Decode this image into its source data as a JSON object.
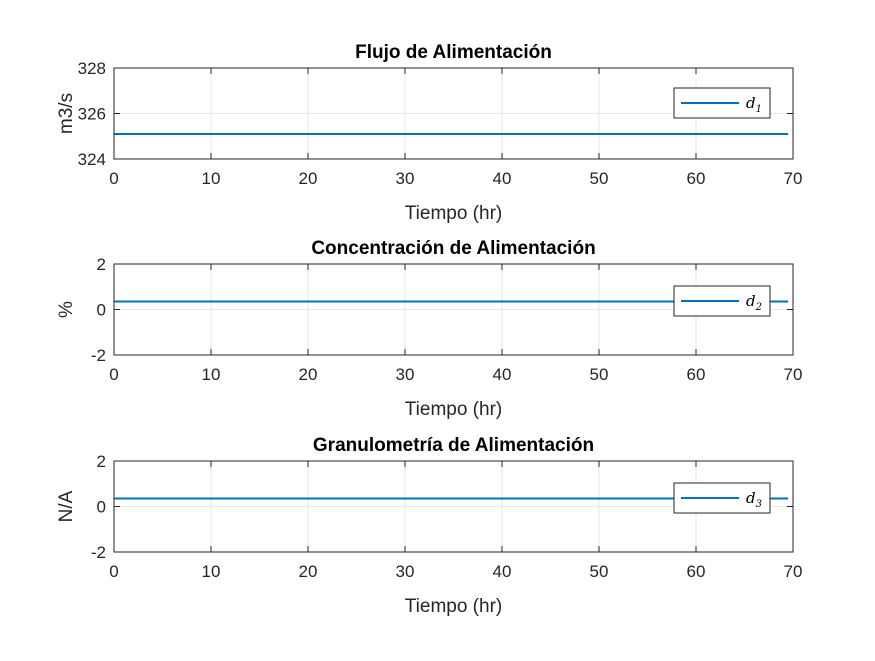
{
  "figure": {
    "background": "#ffffff",
    "line_color": "#0072BD",
    "grid_color": "#e6e6e6"
  },
  "chart_data": [
    {
      "type": "line",
      "title": "Flujo de Alimentación",
      "xlabel": "Tiempo (hr)",
      "ylabel": "m3/s",
      "xlim": [
        0,
        70
      ],
      "ylim": [
        324,
        328
      ],
      "xticks": [
        0,
        10,
        20,
        30,
        40,
        50,
        60,
        70
      ],
      "yticks": [
        324,
        326,
        328
      ],
      "grid": true,
      "legend_position": "top-right",
      "series": [
        {
          "name": "d1",
          "legend_symbol": "d",
          "legend_subscript": "1",
          "x": [
            0,
            69.5
          ],
          "y": [
            325.1,
            325.1
          ]
        }
      ]
    },
    {
      "type": "line",
      "title": "Concentración de Alimentación",
      "xlabel": "Tiempo (hr)",
      "ylabel": "%",
      "xlim": [
        0,
        70
      ],
      "ylim": [
        -2,
        2
      ],
      "xticks": [
        0,
        10,
        20,
        30,
        40,
        50,
        60,
        70
      ],
      "yticks": [
        -2,
        0,
        2
      ],
      "grid": true,
      "legend_position": "right",
      "series": [
        {
          "name": "d2",
          "legend_symbol": "d",
          "legend_subscript": "2",
          "x": [
            0,
            69.5
          ],
          "y": [
            0.35,
            0.35
          ]
        }
      ]
    },
    {
      "type": "line",
      "title": "Granulometría de Alimentación",
      "xlabel": "Tiempo (hr)",
      "ylabel": "N/A",
      "xlim": [
        0,
        70
      ],
      "ylim": [
        -2,
        2
      ],
      "xticks": [
        0,
        10,
        20,
        30,
        40,
        50,
        60,
        70
      ],
      "yticks": [
        -2,
        0,
        2
      ],
      "grid": true,
      "legend_position": "right",
      "series": [
        {
          "name": "d3",
          "legend_symbol": "d",
          "legend_subscript": "3",
          "x": [
            0,
            69.5
          ],
          "y": [
            0.35,
            0.35
          ]
        }
      ]
    }
  ]
}
